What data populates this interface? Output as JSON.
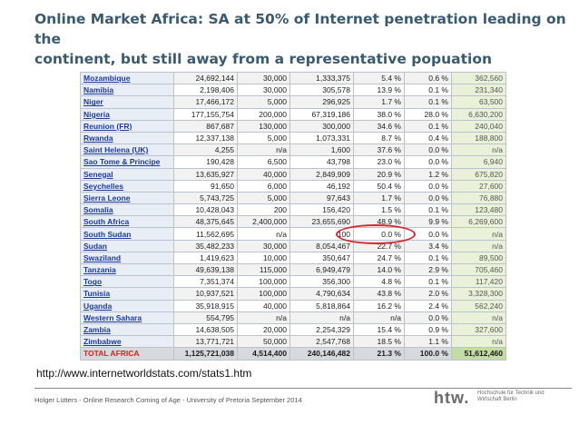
{
  "slide": {
    "title_line1": "Online Market Africa: SA at 50% of Internet penetration leading on the",
    "title_line2": "continent, but still away from a representative popuation",
    "source_url": "http://www.internetworldstats.com/stats1.htm",
    "footer": "Holger Lütters - Online Research Coming of Age - University of Pretoria September 2014",
    "logo_mark": "htw.",
    "logo_text": "Hochschule für Technik und Wirtschaft Berlin",
    "highlight_color": "#d9262c",
    "title_color": "#3a5a70"
  },
  "table": {
    "rows": [
      [
        "Mozambique",
        "24,692,144",
        "30,000",
        "1,333,375",
        "5.4 %",
        "0.6 %",
        "362,560"
      ],
      [
        "Namibia",
        "2,198,406",
        "30,000",
        "305,578",
        "13.9 %",
        "0.1 %",
        "231,340"
      ],
      [
        "Niger",
        "17,466,172",
        "5,000",
        "296,925",
        "1.7 %",
        "0.1 %",
        "63,500"
      ],
      [
        "Nigeria",
        "177,155,754",
        "200,000",
        "67,319,186",
        "38.0 %",
        "28.0 %",
        "6,630,200"
      ],
      [
        "Reunion (FR)",
        "867,687",
        "130,000",
        "300,000",
        "34.6 %",
        "0.1 %",
        "240,040"
      ],
      [
        "Rwanda",
        "12,337,138",
        "5,000",
        "1,073,331",
        "8.7 %",
        "0.4 %",
        "188,800"
      ],
      [
        "Saint Helena (UK)",
        "4,255",
        "n/a",
        "1,600",
        "37.6 %",
        "0.0 %",
        "n/a"
      ],
      [
        "Sao Tome & Principe",
        "190,428",
        "6,500",
        "43,798",
        "23.0 %",
        "0.0 %",
        "6,940"
      ],
      [
        "Senegal",
        "13,635,927",
        "40,000",
        "2,849,909",
        "20.9 %",
        "1.2 %",
        "675,820"
      ],
      [
        "Seychelles",
        "91,650",
        "6,000",
        "46,192",
        "50.4 %",
        "0.0 %",
        "27,600"
      ],
      [
        "Sierra Leone",
        "5,743,725",
        "5,000",
        "97,643",
        "1.7 %",
        "0.0 %",
        "76,880"
      ],
      [
        "Somalia",
        "10,428,043",
        "200",
        "156,420",
        "1.5 %",
        "0.1 %",
        "123,480"
      ],
      [
        "South Africa",
        "48,375,645",
        "2,400,000",
        "23,655,690",
        "48.9 %",
        "9.9 %",
        "6,269,600"
      ],
      [
        "South Sudan",
        "11,562,695",
        "n/a",
        "100",
        "0.0 %",
        "0.0 %",
        "n/a"
      ],
      [
        "Sudan",
        "35,482,233",
        "30,000",
        "8,054,467",
        "22.7 %",
        "3.4 %",
        "n/a"
      ],
      [
        "Swaziland",
        "1,419,623",
        "10,000",
        "350,647",
        "24.7 %",
        "0.1 %",
        "89,500"
      ],
      [
        "Tanzania",
        "49,639,138",
        "115,000",
        "6,949,479",
        "14.0 %",
        "2.9 %",
        "705,460"
      ],
      [
        "Togo",
        "7,351,374",
        "100,000",
        "356,300",
        "4.8 %",
        "0.1 %",
        "117,420"
      ],
      [
        "Tunisia",
        "10,937,521",
        "100,000",
        "4,790,634",
        "43.8 %",
        "2.0 %",
        "3,328,300"
      ],
      [
        "Uganda",
        "35,918,915",
        "40,000",
        "5,818,864",
        "16.2 %",
        "2.4 %",
        "562,240"
      ],
      [
        "Western Sahara",
        "554,795",
        "n/a",
        "n/a",
        "n/a",
        "0.0 %",
        "n/a"
      ],
      [
        "Zambia",
        "14,638,505",
        "20,000",
        "2,254,329",
        "15.4 %",
        "0.9 %",
        "327,600"
      ],
      [
        "Zimbabwe",
        "13,771,721",
        "50,000",
        "2,547,768",
        "18.5 %",
        "1.1 %",
        "n/a"
      ]
    ],
    "total": [
      "TOTAL AFRICA",
      "1,125,721,038",
      "4,514,400",
      "240,146,482",
      "21.3 %",
      "100.0 %",
      "51,612,460"
    ]
  }
}
